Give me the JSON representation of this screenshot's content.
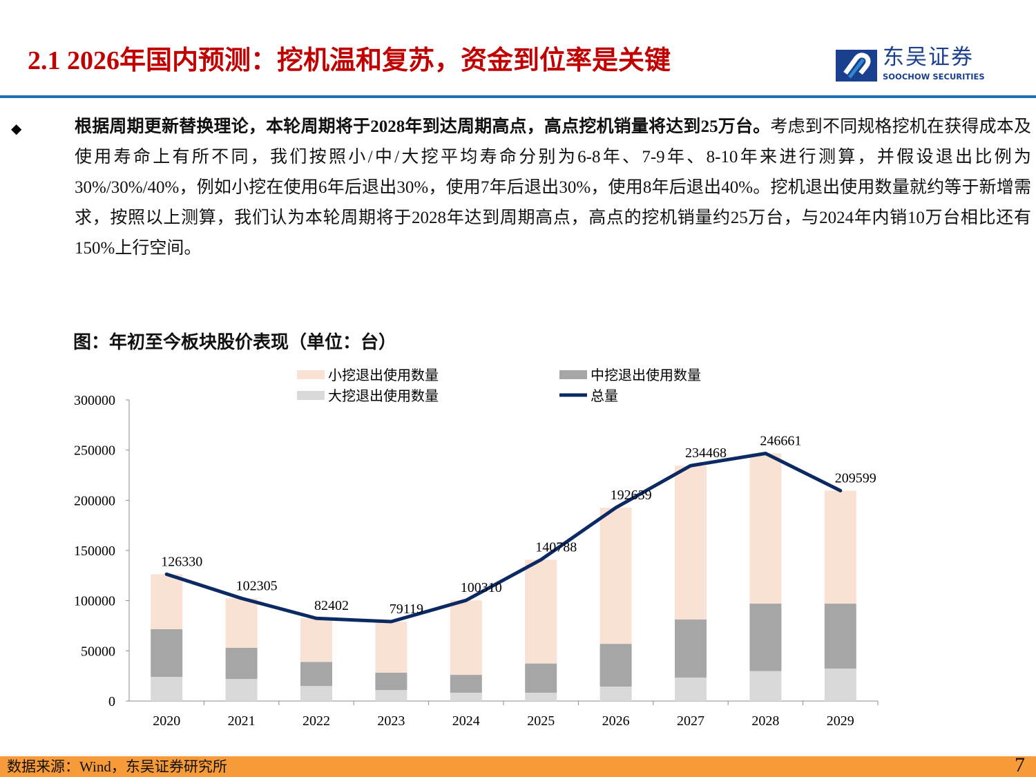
{
  "header": {
    "title": "2.1 2026年国内预测：挖机温和复苏，资金到位率是关键",
    "logo_cn": "东吴证券",
    "logo_en": "SOOCHOW SECURITIES"
  },
  "body": {
    "bullet_icon": "diamond-bullet",
    "bold_text": "根据周期更新替换理论，本轮周期将于2028年到达周期高点，高点挖机销量将达到25万台。",
    "normal_text": "考虑到不同规格挖机在获得成本及使用寿命上有所不同，我们按照小/中/大挖平均寿命分别为6-8年、7-9年、8-10年来进行测算，并假设退出比例为30%/30%/40%，例如小挖在使用6年后退出30%，使用7年后退出30%，使用8年后退出40%。挖机退出使用数量就约等于新增需求，按照以上测算，我们认为本轮周期将于2028年达到周期高点，高点的挖机销量约25万台，与2024年内销10万台相比还有150%上行空间。"
  },
  "chart_title": "图：年初至今板块股价表现（单位：台）",
  "chart_data": {
    "type": "bar",
    "stacked": true,
    "categories": [
      "2020",
      "2021",
      "2022",
      "2023",
      "2024",
      "2025",
      "2026",
      "2027",
      "2028",
      "2029"
    ],
    "series": [
      {
        "name": "大挖退出使用数量",
        "color": "#D9D9D9",
        "values": [
          24000,
          22000,
          15000,
          11000,
          8300,
          8300,
          14400,
          23400,
          29800,
          32300
        ]
      },
      {
        "name": "中挖退出使用数量",
        "color": "#A6A6A6",
        "values": [
          47600,
          31000,
          24000,
          17200,
          17800,
          29100,
          42600,
          57800,
          67200,
          64700
        ]
      },
      {
        "name": "小挖退出使用数量",
        "color": "#F9E2D4",
        "values": [
          54730,
          49305,
          43402,
          50919,
          74210,
          103388,
          135639,
          153268,
          149661,
          112599
        ]
      }
    ],
    "line": {
      "name": "总量",
      "color": "#0B2A63",
      "values": [
        126330,
        102305,
        82402,
        79119,
        100310,
        140788,
        192639,
        234468,
        246661,
        209599
      ]
    },
    "legend_order": [
      "小挖退出使用数量",
      "中挖退出使用数量",
      "大挖退出使用数量",
      "总量"
    ],
    "ylim": [
      0,
      300000
    ],
    "yticks": [
      "0",
      "50000",
      "100000",
      "150000",
      "200000",
      "250000",
      "300000"
    ],
    "grid": false,
    "legend_position": "top"
  },
  "footer": {
    "source": "数据来源：Wind，东吴证券研究所",
    "page": "7"
  }
}
